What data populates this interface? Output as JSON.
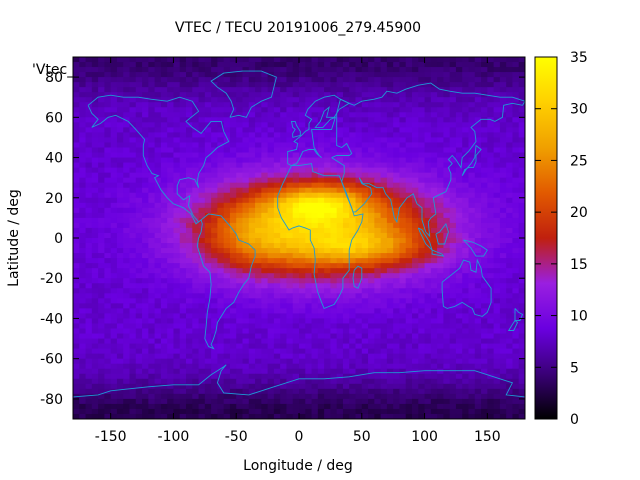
{
  "chart_data": {
    "type": "heatmap",
    "title": "VTEC / TECU 20191006_279.45900",
    "xlabel": "Longitude / deg",
    "ylabel": "Latitude / deg",
    "series_label": "'Vtec_",
    "xlim": [
      -180,
      180
    ],
    "ylim": [
      -90,
      90
    ],
    "x_ticks": [
      -150,
      -100,
      -50,
      0,
      50,
      100,
      150
    ],
    "y_ticks": [
      -80,
      -60,
      -40,
      -20,
      0,
      20,
      40,
      60,
      80
    ],
    "colorbar": {
      "range": [
        0,
        35
      ],
      "ticks": [
        0,
        5,
        10,
        15,
        20,
        25,
        30,
        35
      ],
      "palette": [
        "#000000",
        "#3a0077",
        "#6a00e0",
        "#9a1fe0",
        "#c0200e",
        "#e25a00",
        "#f0a000",
        "#ffd000",
        "#ffff00"
      ]
    },
    "coastline_color": "#1e9ad6",
    "field_features": [
      {
        "kind": "background",
        "value": 8
      },
      {
        "kind": "equatorial-peak",
        "lon": 15,
        "lat": 5,
        "lon_width": 65,
        "lat_width": 17,
        "value": 22
      },
      {
        "kind": "crest",
        "lon": 15,
        "lat": 17,
        "lon_width": 25,
        "lat_width": 6,
        "value": 10
      },
      {
        "kind": "crest",
        "lon": 55,
        "lat": -5,
        "lon_width": 35,
        "lat_width": 6,
        "value": 6
      },
      {
        "kind": "crest",
        "lon": -40,
        "lat": 0,
        "lon_width": 25,
        "lat_width": 10,
        "value": 4
      },
      {
        "kind": "polar-depletion",
        "lat": 88,
        "value": -4
      },
      {
        "kind": "polar-depletion",
        "lat": -88,
        "value": -5
      }
    ]
  }
}
